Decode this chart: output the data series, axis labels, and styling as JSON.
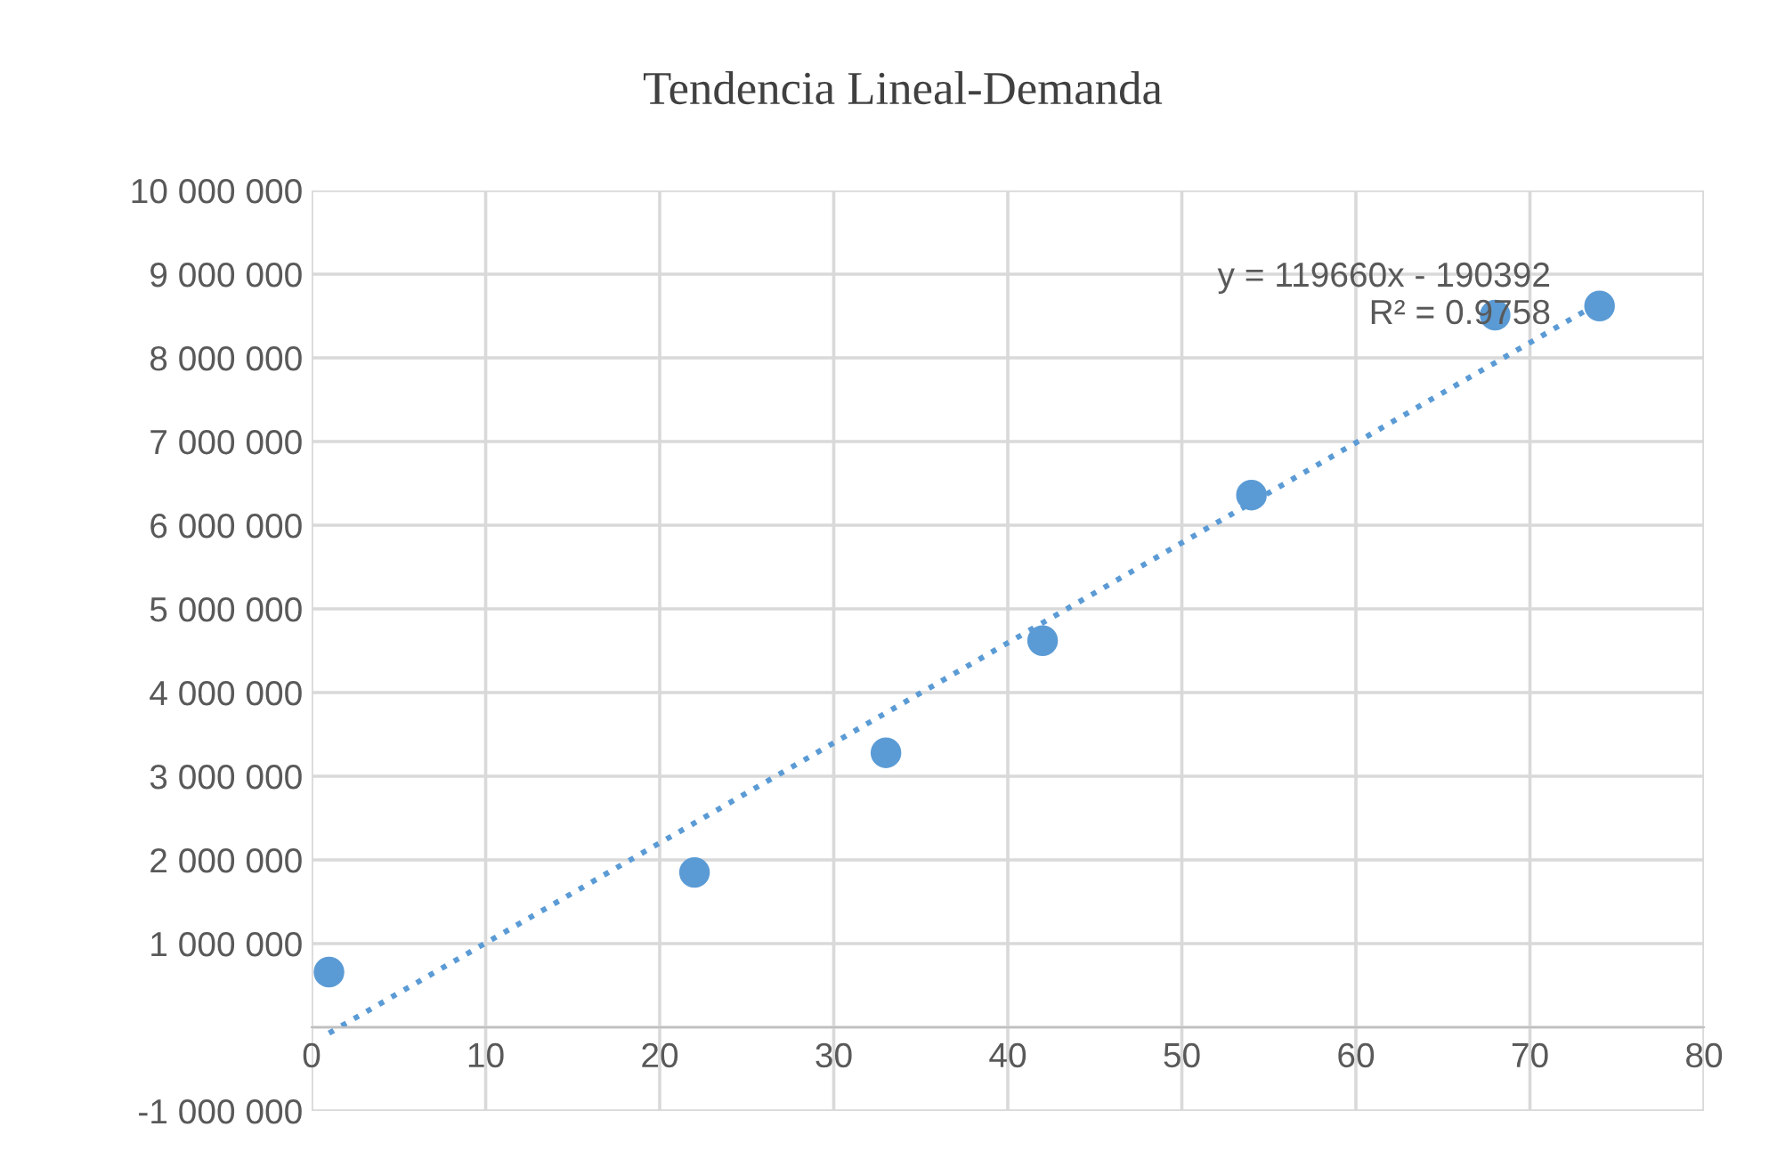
{
  "chart_data": {
    "type": "scatter",
    "title": "Tendencia Lineal-Demanda",
    "series": [
      {
        "color": "#5b9bd5",
        "marker": "circle",
        "x": [
          1,
          22,
          33,
          42,
          54,
          68,
          74
        ],
        "values": [
          660000,
          1850000,
          3280000,
          4620000,
          6360000,
          8510000,
          8620000
        ]
      },
      {
        "type": "line",
        "color": "#5b9bd5",
        "marker": "none",
        "line_style": "dotted",
        "x": [
          1,
          74
        ],
        "values": [
          -70000,
          8660000
        ]
      }
    ],
    "annotations": [
      "y = 119660x - 190392\nR² = 0.9758"
    ],
    "xlim": [
      0,
      80
    ],
    "xticks": [
      0,
      10,
      20,
      30,
      40,
      50,
      60,
      70,
      80
    ],
    "ylim": [
      -1000000,
      10000000
    ],
    "yticks": [
      {
        "value": -1000000,
        "label": "-1 000 000"
      },
      {
        "value": 0,
        "label": null
      },
      {
        "value": 1000000,
        "label": "1 000 000"
      },
      {
        "value": 2000000,
        "label": "2 000 000"
      },
      {
        "value": 3000000,
        "label": "3 000 000"
      },
      {
        "value": 4000000,
        "label": "4 000 000"
      },
      {
        "value": 5000000,
        "label": "5 000 000"
      },
      {
        "value": 6000000,
        "label": "6 000 000"
      },
      {
        "value": 7000000,
        "label": "7 000 000"
      },
      {
        "value": 8000000,
        "label": "8 000 000"
      },
      {
        "value": 9000000,
        "label": "9 000 000"
      },
      {
        "value": 10000000,
        "label": "10 000 000"
      }
    ],
    "grid": true,
    "legend": false
  }
}
